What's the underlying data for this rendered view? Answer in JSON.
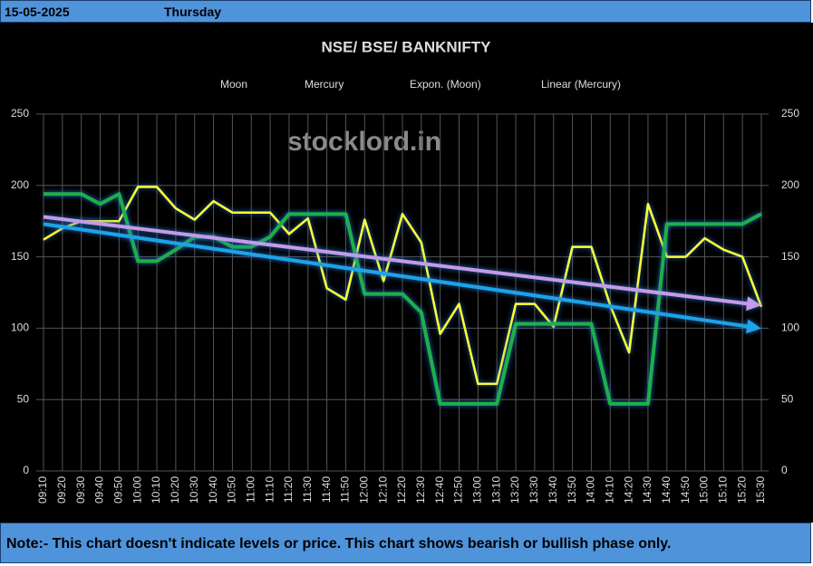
{
  "header": {
    "date": "15-05-2025",
    "day": "Thursday"
  },
  "note": "Note:- This chart doesn't indicate levels or price. This chart shows bearish or bullish phase only.",
  "chart_data": {
    "type": "line",
    "title": "NSE/ BSE/ BANKNIFTY",
    "watermark": "stocklord.in",
    "categories": [
      "09:10",
      "09:20",
      "09:30",
      "09:40",
      "09:50",
      "10:00",
      "10:10",
      "10:20",
      "10:30",
      "10:40",
      "10:50",
      "11:00",
      "11:10",
      "11:20",
      "11:30",
      "11:40",
      "11:50",
      "12:00",
      "12:10",
      "12:20",
      "12:30",
      "12:40",
      "12:50",
      "13:00",
      "13:10",
      "13:20",
      "13:30",
      "13:40",
      "13:50",
      "14:00",
      "14:10",
      "14:20",
      "14:30",
      "14:40",
      "14:50",
      "15:00",
      "15:10",
      "15:20",
      "15:30"
    ],
    "series": [
      {
        "name": "Moon",
        "color": "#ffff33",
        "values": [
          162,
          170,
          175,
          175,
          175,
          199,
          199,
          184,
          176,
          189,
          181,
          181,
          181,
          166,
          177,
          128,
          120,
          176,
          133,
          180,
          160,
          96,
          117,
          61,
          61,
          117,
          117,
          101,
          157,
          157,
          116,
          83,
          187,
          150,
          150,
          163,
          155,
          150,
          115
        ]
      },
      {
        "name": "Mercury",
        "color": "#1fb04a",
        "values": [
          194,
          194,
          194,
          187,
          194,
          147,
          147,
          155,
          164,
          164,
          157,
          157,
          164,
          180,
          180,
          180,
          180,
          124,
          124,
          124,
          111,
          47,
          47,
          47,
          47,
          103,
          103,
          103,
          103,
          103,
          47,
          47,
          47,
          173,
          173,
          173,
          173,
          173,
          180
        ]
      }
    ],
    "trendlines": [
      {
        "name": "Expon. (Moon)",
        "color": "#c39be8",
        "start": 178,
        "end": 117
      },
      {
        "name": "Linear (Mercury)",
        "color": "#1aa3e8",
        "start": 173,
        "end": 101
      }
    ],
    "ylim": [
      0,
      250
    ],
    "yticks": [
      0,
      50,
      100,
      150,
      200,
      250
    ],
    "y2lim": [
      0,
      250
    ],
    "y2ticks": [
      0,
      50,
      100,
      150,
      200,
      250
    ],
    "grid": true
  }
}
